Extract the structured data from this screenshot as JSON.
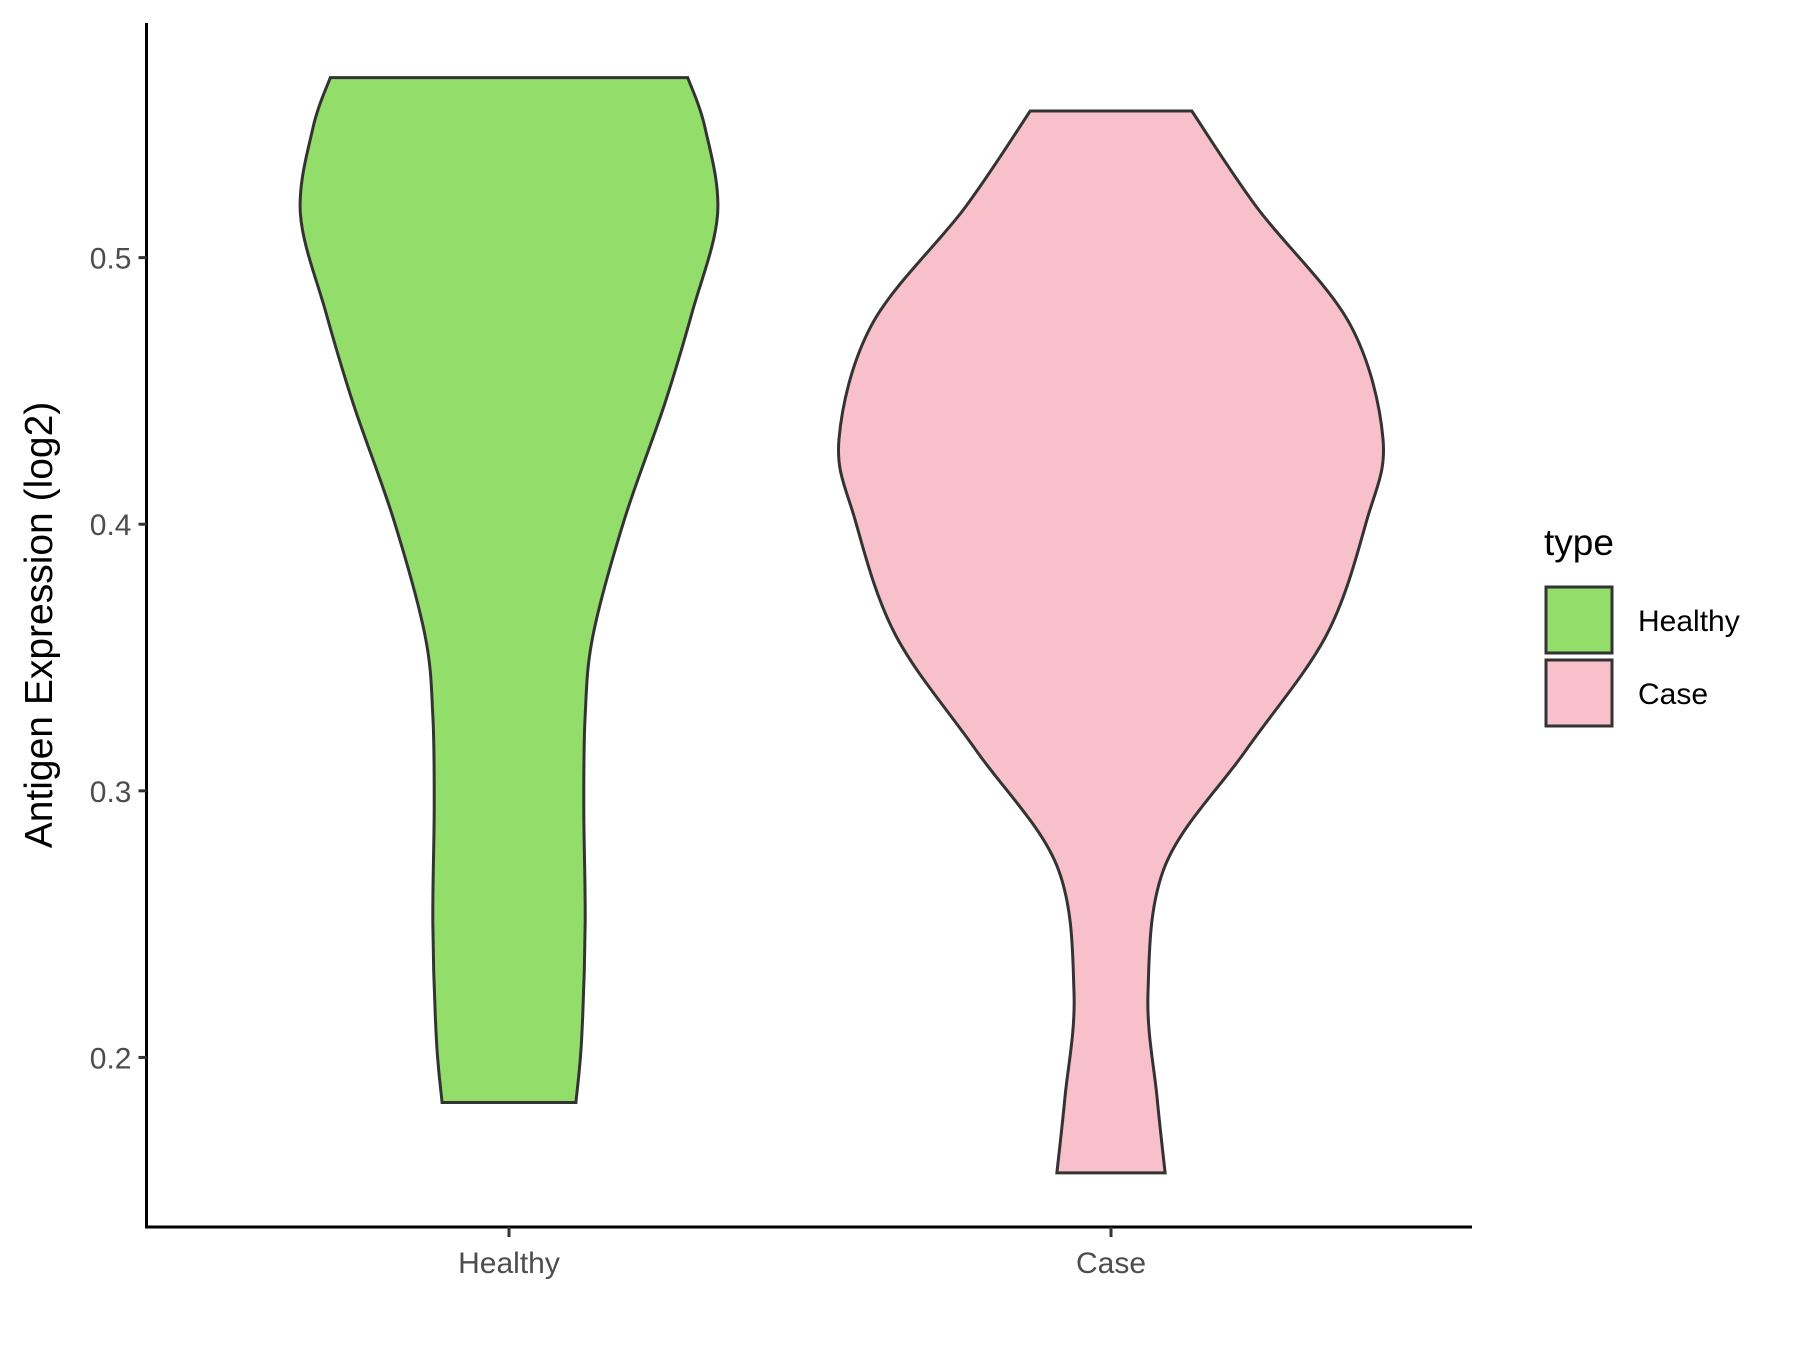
{
  "chart_data": {
    "type": "violin",
    "title": "",
    "xlabel": "",
    "ylabel": "Antigen Expression (log2)",
    "categories": [
      "Healthy",
      "Case"
    ],
    "yticks": [
      0.2,
      0.3,
      0.4,
      0.5
    ],
    "ytick_labels": [
      "0.2",
      "0.3",
      "0.4",
      "0.5"
    ],
    "ylim": [
      0.1364,
      0.588
    ],
    "grid": false,
    "legend": {
      "title": "type",
      "placement": "right",
      "entries": [
        "Healthy",
        "Case"
      ]
    },
    "colors": {
      "Healthy": "#93DD6A",
      "Case": "#F8C0CB",
      "outline": "#333333"
    },
    "series": [
      {
        "name": "Healthy",
        "min": 0.183,
        "max": 0.5675,
        "profile_y": [
          0.5675,
          0.549,
          0.5165,
          0.4797,
          0.445,
          0.4017,
          0.3584,
          0.3281,
          0.2935,
          0.2502,
          0.2069,
          0.1831
        ],
        "relative_width": [
          0.657,
          0.72,
          0.767,
          0.674,
          0.572,
          0.424,
          0.309,
          0.28,
          0.275,
          0.28,
          0.267,
          0.246
        ]
      },
      {
        "name": "Case",
        "min": 0.157,
        "max": 0.555,
        "profile_y": [
          0.555,
          0.5186,
          0.4753,
          0.432,
          0.4017,
          0.3584,
          0.3152,
          0.2719,
          0.2242,
          0.1853,
          0.1567
        ],
        "relative_width": [
          0.297,
          0.538,
          0.877,
          1.0,
          0.941,
          0.792,
          0.496,
          0.199,
          0.136,
          0.169,
          0.199
        ]
      }
    ]
  }
}
